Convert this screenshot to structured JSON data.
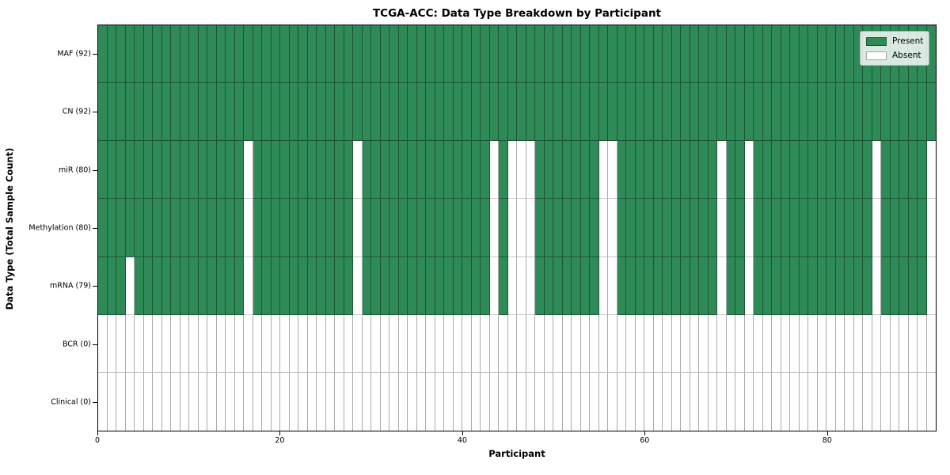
{
  "title": "TCGA-ACC: Data Type Breakdown by Participant",
  "xlabel": "Participant",
  "ylabel": "Data Type (Total Sample Count)",
  "legend": {
    "present_label": "Present",
    "absent_label": "Absent"
  },
  "colors": {
    "present": "#2e8b57",
    "absent": "#ffffff"
  },
  "chart_data": {
    "type": "heatmap",
    "title": "TCGA-ACC: Data Type Breakdown by Participant",
    "xlabel": "Participant",
    "ylabel": "Data Type (Total Sample Count)",
    "n_participants": 92,
    "x_ticks": [
      0,
      20,
      40,
      60,
      80
    ],
    "legend_entries": [
      "Present",
      "Absent"
    ],
    "legend_position": "upper right",
    "cell_values": "1 = present (green), 0 = absent (white)",
    "rows": [
      {
        "data_type": "MAF",
        "label": "MAF (92)",
        "total_samples": 92,
        "absent_participants": []
      },
      {
        "data_type": "CN",
        "label": "CN (92)",
        "total_samples": 92,
        "absent_participants": []
      },
      {
        "data_type": "miR",
        "label": "miR (80)",
        "total_samples": 80,
        "absent_participants": [
          16,
          28,
          43,
          45,
          46,
          47,
          55,
          56,
          68,
          71,
          85,
          91
        ]
      },
      {
        "data_type": "Methylation",
        "label": "Methylation (80)",
        "total_samples": 80,
        "absent_participants": [
          16,
          28,
          43,
          45,
          46,
          47,
          55,
          56,
          68,
          71,
          85,
          91
        ]
      },
      {
        "data_type": "mRNA",
        "label": "mRNA (79)",
        "total_samples": 79,
        "absent_participants": [
          3,
          16,
          28,
          43,
          45,
          46,
          47,
          55,
          56,
          68,
          71,
          85,
          91
        ]
      },
      {
        "data_type": "BCR",
        "label": "BCR (0)",
        "total_samples": 0,
        "absent_participants": "all"
      },
      {
        "data_type": "Clinical",
        "label": "Clinical (0)",
        "total_samples": 0,
        "absent_participants": "all"
      }
    ]
  }
}
